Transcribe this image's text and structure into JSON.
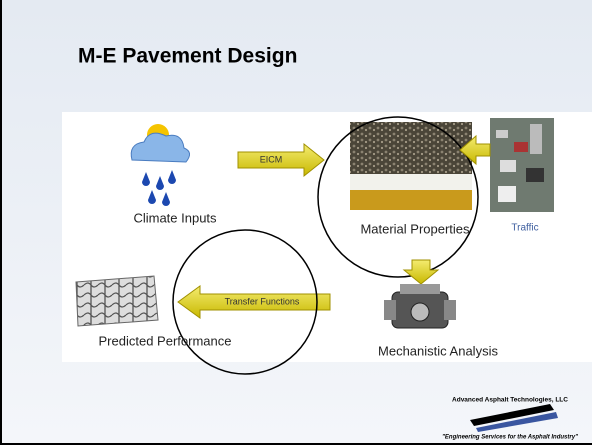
{
  "title": "M-E Pavement Design",
  "nodes": [
    {
      "label": "Climate Inputs"
    },
    {
      "label": "Material Properties"
    },
    {
      "label": "Traffic"
    },
    {
      "label": "Mechanistic Analysis"
    },
    {
      "label": "Predicted Performance"
    }
  ],
  "arrows": [
    {
      "label": "EICM"
    },
    {
      "label": "Transfer Functions"
    }
  ],
  "footer": {
    "company": "Advanced Asphalt Technologies, LLC",
    "tagline": "\"Engineering Services for the Asphalt Industry\""
  }
}
